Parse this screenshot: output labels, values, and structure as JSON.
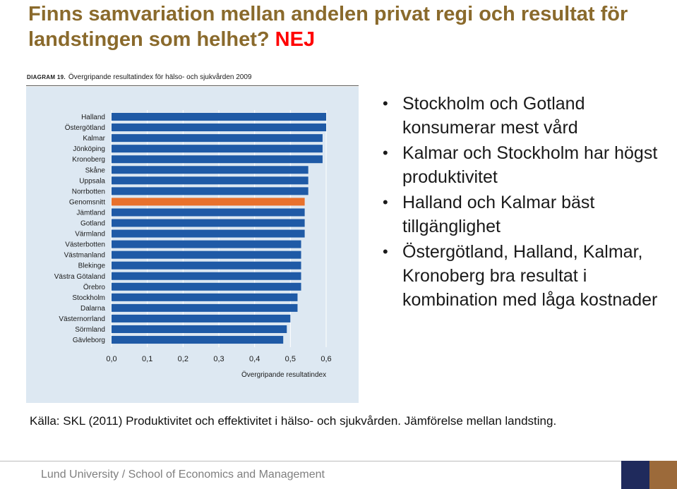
{
  "title": {
    "main": "Finns samvariation mellan andelen privat regi och resultat för landstingen som helhet?",
    "answer": "NEJ"
  },
  "chart_caption": {
    "label": "DIAGRAM 19.",
    "text": "Övergripande resultatindex för hälso- och sjukvården 2009"
  },
  "bullets": [
    "Stockholm och Gotland konsumerar mest vård",
    "Kalmar och Stockholm har högst produktivitet",
    "Halland och Kalmar bäst tillgänglighet",
    "Östergötland, Halland, Kalmar, Kronoberg bra resultat i kombination med låga kostnader"
  ],
  "source": "Källa: SKL (2011) Produktivitet och effektivitet i hälso- och sjukvården. Jämförelse mellan landsting.",
  "footer": "Lund University / School of Economics and Management",
  "chart_data": {
    "type": "bar",
    "orientation": "horizontal",
    "title": "",
    "xlabel": "Övergripande resultatindex",
    "ylabel": "",
    "xlim": [
      0,
      0.6
    ],
    "xticks": [
      "0,0",
      "0,1",
      "0,2",
      "0,3",
      "0,4",
      "0,5",
      "0,6"
    ],
    "xtick_values": [
      0,
      0.1,
      0.2,
      0.3,
      0.4,
      0.5,
      0.6
    ],
    "grid": true,
    "colors": {
      "bar": "#1f5aa6",
      "highlight": "#e8712c",
      "panel": "#dde8f2",
      "grid": "#ffffff"
    },
    "highlight": "Genomsnitt",
    "categories": [
      "Halland",
      "Östergötland",
      "Kalmar",
      "Jönköping",
      "Kronoberg",
      "Skåne",
      "Uppsala",
      "Norrbotten",
      "Genomsnitt",
      "Jämtland",
      "Gotland",
      "Värmland",
      "Västerbotten",
      "Västmanland",
      "Blekinge",
      "Västra Götaland",
      "Örebro",
      "Stockholm",
      "Dalarna",
      "Västernorrland",
      "Sörmland",
      "Gävleborg"
    ],
    "values": [
      0.6,
      0.6,
      0.59,
      0.59,
      0.59,
      0.55,
      0.55,
      0.55,
      0.54,
      0.54,
      0.54,
      0.54,
      0.53,
      0.53,
      0.53,
      0.53,
      0.53,
      0.52,
      0.52,
      0.5,
      0.49,
      0.48
    ]
  }
}
